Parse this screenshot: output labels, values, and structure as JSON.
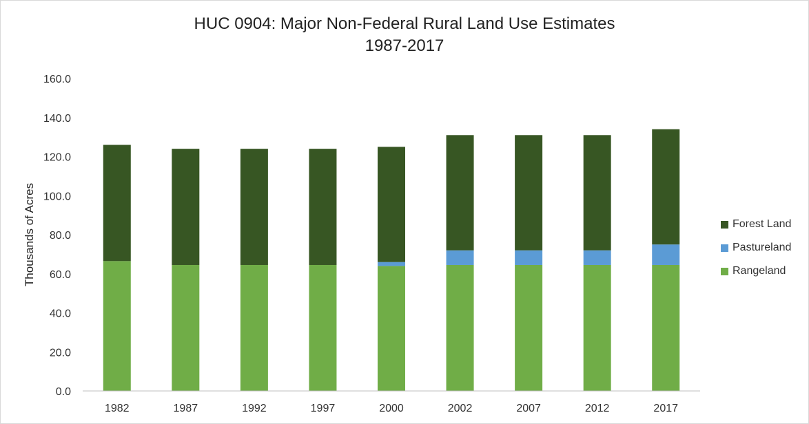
{
  "chart_data": {
    "type": "bar",
    "stacked": true,
    "title_line1": "HUC 0904: Major Non-Federal Rural Land Use Estimates",
    "title_line2": "1987-2017",
    "xlabel": "",
    "ylabel": "Thousands of Acres",
    "ylim": [
      0,
      160
    ],
    "yticks": [
      "0.0",
      "20.0",
      "40.0",
      "60.0",
      "80.0",
      "100.0",
      "120.0",
      "140.0",
      "160.0"
    ],
    "categories": [
      "1982",
      "1987",
      "1992",
      "1997",
      "2000",
      "2002",
      "2007",
      "2012",
      "2017"
    ],
    "series": [
      {
        "name": "Rangeland",
        "color": "#70ad47",
        "values": [
          66.5,
          64.5,
          64.5,
          64.5,
          64.0,
          64.5,
          64.5,
          64.5,
          64.5
        ]
      },
      {
        "name": "Pastureland",
        "color": "#5b9bd5",
        "values": [
          0.0,
          0.0,
          0.0,
          0.0,
          2.0,
          7.5,
          7.5,
          7.5,
          10.5
        ]
      },
      {
        "name": "Forest Land",
        "color": "#375623",
        "values": [
          59.5,
          59.5,
          59.5,
          59.5,
          59.0,
          59.0,
          59.0,
          59.0,
          59.0
        ]
      }
    ],
    "legend_order": [
      "Forest Land",
      "Pastureland",
      "Rangeland"
    ],
    "legend_position": "right",
    "grid": false
  }
}
